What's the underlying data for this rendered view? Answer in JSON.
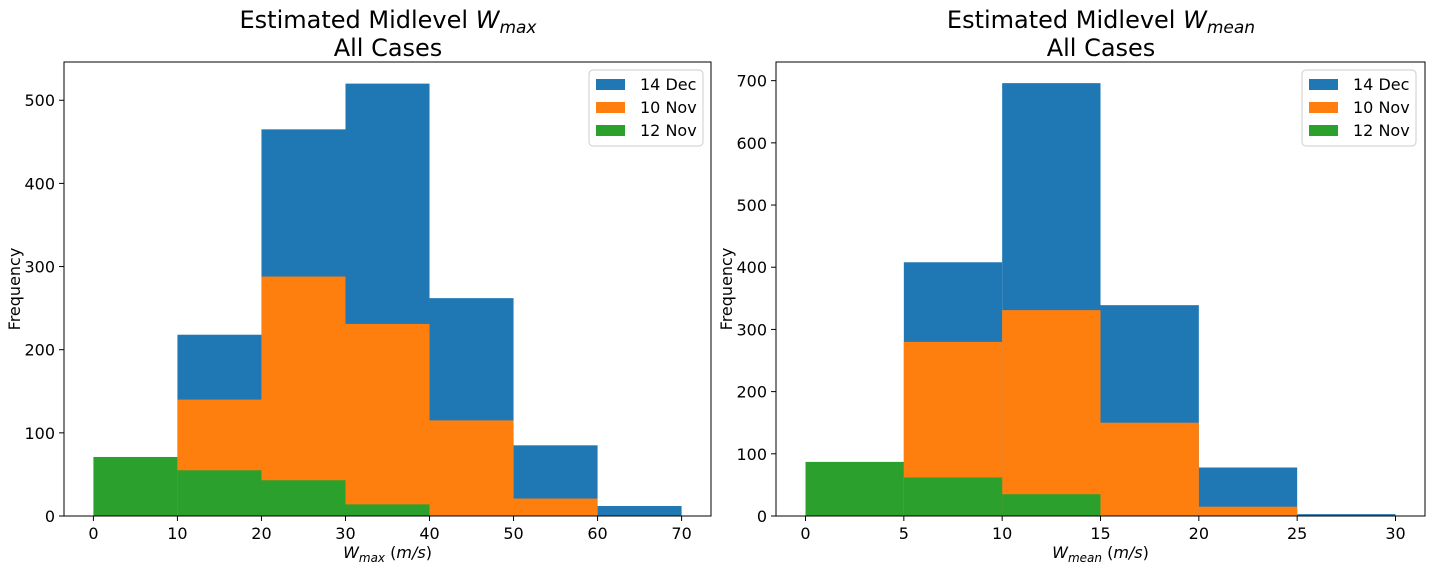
{
  "colors": {
    "14 Dec": "#1f77b4",
    "10 Nov": "#ff7f0e",
    "12 Nov": "#2ca02c"
  },
  "chart_data": [
    {
      "type": "bar",
      "title_main": "Estimated Midlevel ",
      "title_var": "W",
      "title_sub": "max",
      "title_line2": "All Cases",
      "xlabel_var": "W",
      "xlabel_sub": "max",
      "xlabel_unit": " (m/s)",
      "ylabel": "Frequency",
      "bin_edges": [
        0,
        10,
        20,
        30,
        40,
        50,
        60,
        70
      ],
      "xlim": [
        -3.5,
        73.5
      ],
      "ylim": [
        0,
        546
      ],
      "xticks": [
        0,
        10,
        20,
        30,
        40,
        50,
        60,
        70
      ],
      "yticks": [
        0,
        100,
        200,
        300,
        400,
        500
      ],
      "legend": {
        "position": "top-right",
        "entries": [
          "14 Dec",
          "10 Nov",
          "12 Nov"
        ]
      },
      "series": [
        {
          "name": "14 Dec",
          "values": [
            0,
            218,
            465,
            520,
            262,
            85,
            12
          ]
        },
        {
          "name": "10 Nov",
          "values": [
            0,
            140,
            288,
            231,
            115,
            21,
            0
          ]
        },
        {
          "name": "12 Nov",
          "values": [
            71,
            55,
            43,
            14,
            0,
            0,
            0
          ]
        }
      ]
    },
    {
      "type": "bar",
      "title_main": "Estimated Midlevel ",
      "title_var": "W",
      "title_sub": "mean",
      "title_line2": "All Cases",
      "xlabel_var": "W",
      "xlabel_sub": "mean",
      "xlabel_unit": " (m/s)",
      "ylabel": "Frequency",
      "bin_edges": [
        0,
        5,
        10,
        15,
        20,
        25,
        30
      ],
      "xlim": [
        -1.5,
        31.5
      ],
      "ylim": [
        0,
        730
      ],
      "xticks": [
        0,
        5,
        10,
        15,
        20,
        25,
        30
      ],
      "yticks": [
        0,
        100,
        200,
        300,
        400,
        500,
        600,
        700
      ],
      "legend": {
        "position": "top-right",
        "entries": [
          "14 Dec",
          "10 Nov",
          "12 Nov"
        ]
      },
      "series": [
        {
          "name": "14 Dec",
          "values": [
            0,
            408,
            696,
            339,
            78,
            3
          ]
        },
        {
          "name": "10 Nov",
          "values": [
            0,
            280,
            331,
            150,
            15,
            0
          ]
        },
        {
          "name": "12 Nov",
          "values": [
            87,
            62,
            35,
            0,
            0,
            0
          ]
        }
      ]
    }
  ]
}
